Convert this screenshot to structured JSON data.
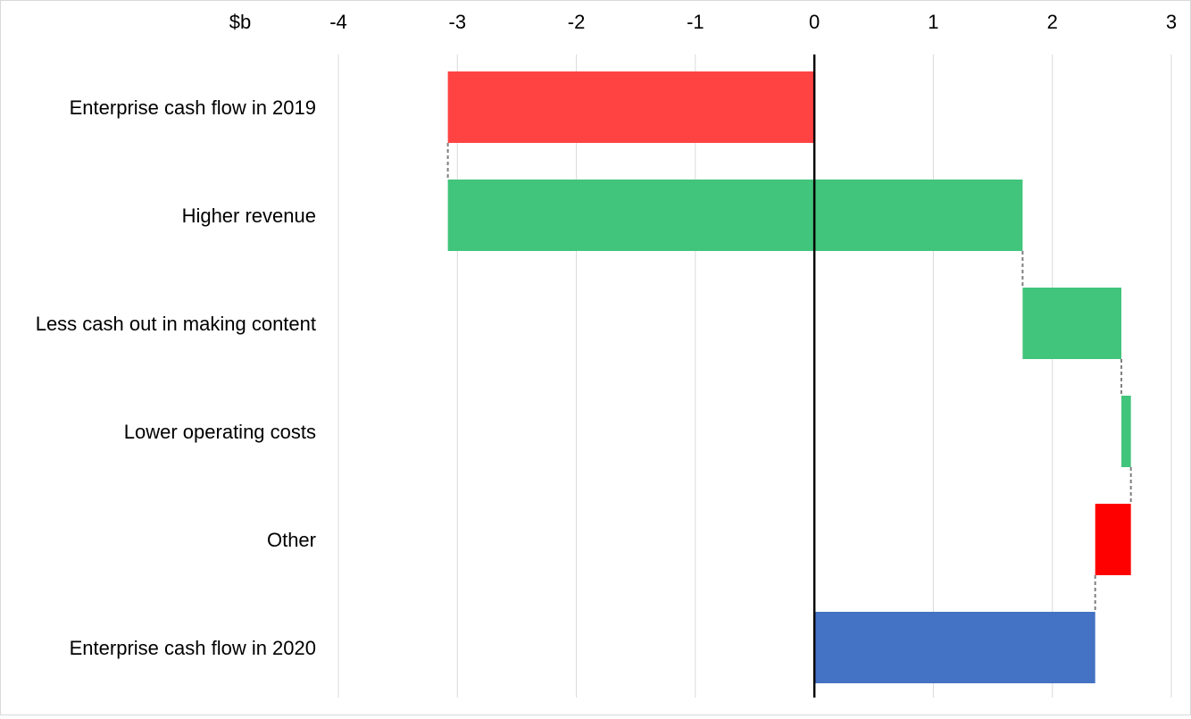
{
  "chart_data": {
    "type": "bar",
    "subtype": "waterfall",
    "orientation": "horizontal",
    "unit_label": "$b",
    "xlim": [
      -4,
      3
    ],
    "x_ticks": [
      -4,
      -3,
      -2,
      -1,
      0,
      1,
      2,
      3
    ],
    "grid": true,
    "categories": [
      "Enterprise cash flow in 2019",
      "Higher revenue",
      "Less cash out in making content",
      "Lower operating costs",
      "Other",
      "Enterprise cash flow in 2020"
    ],
    "bars": [
      {
        "category": "Enterprise cash flow in 2019",
        "start": 0,
        "end": -3.08,
        "color": "#ff4343"
      },
      {
        "category": "Higher revenue",
        "start": -3.08,
        "end": 1.75,
        "color": "#41c47b"
      },
      {
        "category": "Less cash out in making content",
        "start": 1.75,
        "end": 2.58,
        "color": "#41c47b"
      },
      {
        "category": "Lower operating costs",
        "start": 2.58,
        "end": 2.66,
        "color": "#41c47b"
      },
      {
        "category": "Other",
        "start": 2.66,
        "end": 2.36,
        "color": "#ff0000"
      },
      {
        "category": "Enterprise cash flow in 2020",
        "start": 0,
        "end": 2.36,
        "color": "#4472c4"
      }
    ],
    "connector_color": "#7f7f7f",
    "zero_line_color": "#000000",
    "grid_color": "#d9d9d9"
  }
}
